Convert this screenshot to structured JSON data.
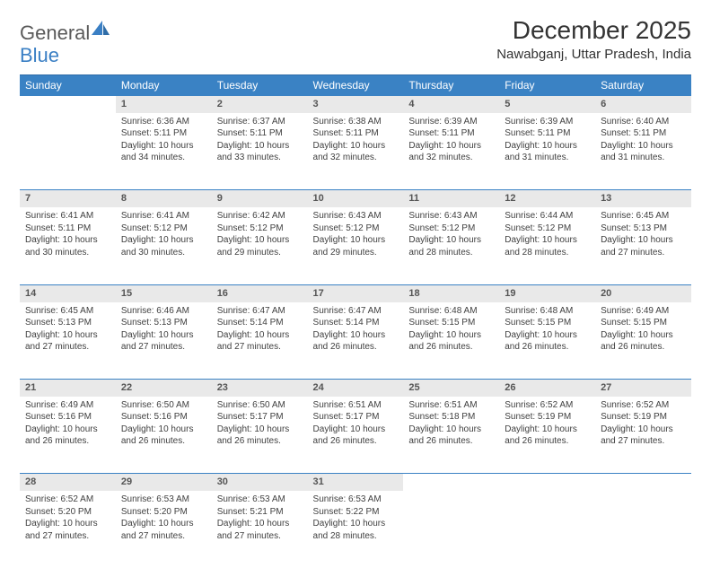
{
  "brand": {
    "part1": "General",
    "part2": "Blue"
  },
  "title": "December 2025",
  "location": "Nawabganj, Uttar Pradesh, India",
  "colors": {
    "header_bg": "#3a82c4",
    "header_text": "#ffffff",
    "daynum_bg": "#e9e9e9",
    "border": "#3a82c4",
    "text": "#404040",
    "logo_gray": "#5a5a5a",
    "logo_blue": "#3a7fc4"
  },
  "weekdays": [
    "Sunday",
    "Monday",
    "Tuesday",
    "Wednesday",
    "Thursday",
    "Friday",
    "Saturday"
  ],
  "weeks": [
    [
      null,
      {
        "n": "1",
        "sr": "6:36 AM",
        "ss": "5:11 PM",
        "dl": "10 hours and 34 minutes."
      },
      {
        "n": "2",
        "sr": "6:37 AM",
        "ss": "5:11 PM",
        "dl": "10 hours and 33 minutes."
      },
      {
        "n": "3",
        "sr": "6:38 AM",
        "ss": "5:11 PM",
        "dl": "10 hours and 32 minutes."
      },
      {
        "n": "4",
        "sr": "6:39 AM",
        "ss": "5:11 PM",
        "dl": "10 hours and 32 minutes."
      },
      {
        "n": "5",
        "sr": "6:39 AM",
        "ss": "5:11 PM",
        "dl": "10 hours and 31 minutes."
      },
      {
        "n": "6",
        "sr": "6:40 AM",
        "ss": "5:11 PM",
        "dl": "10 hours and 31 minutes."
      }
    ],
    [
      {
        "n": "7",
        "sr": "6:41 AM",
        "ss": "5:11 PM",
        "dl": "10 hours and 30 minutes."
      },
      {
        "n": "8",
        "sr": "6:41 AM",
        "ss": "5:12 PM",
        "dl": "10 hours and 30 minutes."
      },
      {
        "n": "9",
        "sr": "6:42 AM",
        "ss": "5:12 PM",
        "dl": "10 hours and 29 minutes."
      },
      {
        "n": "10",
        "sr": "6:43 AM",
        "ss": "5:12 PM",
        "dl": "10 hours and 29 minutes."
      },
      {
        "n": "11",
        "sr": "6:43 AM",
        "ss": "5:12 PM",
        "dl": "10 hours and 28 minutes."
      },
      {
        "n": "12",
        "sr": "6:44 AM",
        "ss": "5:12 PM",
        "dl": "10 hours and 28 minutes."
      },
      {
        "n": "13",
        "sr": "6:45 AM",
        "ss": "5:13 PM",
        "dl": "10 hours and 27 minutes."
      }
    ],
    [
      {
        "n": "14",
        "sr": "6:45 AM",
        "ss": "5:13 PM",
        "dl": "10 hours and 27 minutes."
      },
      {
        "n": "15",
        "sr": "6:46 AM",
        "ss": "5:13 PM",
        "dl": "10 hours and 27 minutes."
      },
      {
        "n": "16",
        "sr": "6:47 AM",
        "ss": "5:14 PM",
        "dl": "10 hours and 27 minutes."
      },
      {
        "n": "17",
        "sr": "6:47 AM",
        "ss": "5:14 PM",
        "dl": "10 hours and 26 minutes."
      },
      {
        "n": "18",
        "sr": "6:48 AM",
        "ss": "5:15 PM",
        "dl": "10 hours and 26 minutes."
      },
      {
        "n": "19",
        "sr": "6:48 AM",
        "ss": "5:15 PM",
        "dl": "10 hours and 26 minutes."
      },
      {
        "n": "20",
        "sr": "6:49 AM",
        "ss": "5:15 PM",
        "dl": "10 hours and 26 minutes."
      }
    ],
    [
      {
        "n": "21",
        "sr": "6:49 AM",
        "ss": "5:16 PM",
        "dl": "10 hours and 26 minutes."
      },
      {
        "n": "22",
        "sr": "6:50 AM",
        "ss": "5:16 PM",
        "dl": "10 hours and 26 minutes."
      },
      {
        "n": "23",
        "sr": "6:50 AM",
        "ss": "5:17 PM",
        "dl": "10 hours and 26 minutes."
      },
      {
        "n": "24",
        "sr": "6:51 AM",
        "ss": "5:17 PM",
        "dl": "10 hours and 26 minutes."
      },
      {
        "n": "25",
        "sr": "6:51 AM",
        "ss": "5:18 PM",
        "dl": "10 hours and 26 minutes."
      },
      {
        "n": "26",
        "sr": "6:52 AM",
        "ss": "5:19 PM",
        "dl": "10 hours and 26 minutes."
      },
      {
        "n": "27",
        "sr": "6:52 AM",
        "ss": "5:19 PM",
        "dl": "10 hours and 27 minutes."
      }
    ],
    [
      {
        "n": "28",
        "sr": "6:52 AM",
        "ss": "5:20 PM",
        "dl": "10 hours and 27 minutes."
      },
      {
        "n": "29",
        "sr": "6:53 AM",
        "ss": "5:20 PM",
        "dl": "10 hours and 27 minutes."
      },
      {
        "n": "30",
        "sr": "6:53 AM",
        "ss": "5:21 PM",
        "dl": "10 hours and 27 minutes."
      },
      {
        "n": "31",
        "sr": "6:53 AM",
        "ss": "5:22 PM",
        "dl": "10 hours and 28 minutes."
      },
      null,
      null,
      null
    ]
  ],
  "labels": {
    "sunrise": "Sunrise:",
    "sunset": "Sunset:",
    "daylight": "Daylight:"
  }
}
